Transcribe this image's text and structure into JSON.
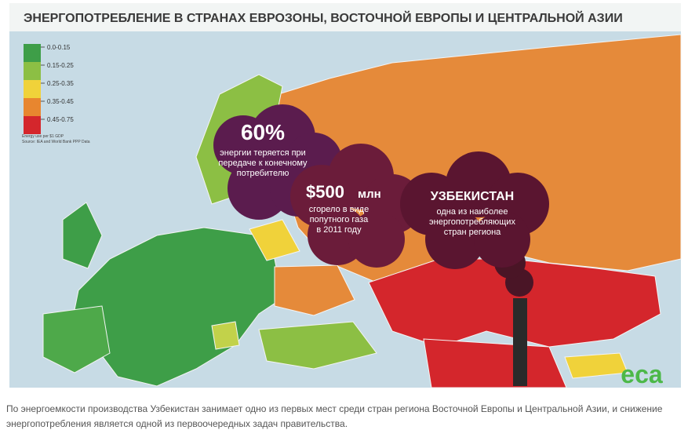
{
  "header": {
    "title": "ЭНЕРГОПОТРЕБЛЕНИЕ В СТРАНАХ ЕВРОЗОНЫ, ВОСТОЧНОЙ ЕВРОПЫ И ЦЕНТРАЛЬНОЙ АЗИИ"
  },
  "legend": {
    "items": [
      {
        "label": "0.0-0.15",
        "color": "#3e9e48"
      },
      {
        "label": "0.15-0.25",
        "color": "#8cbf44"
      },
      {
        "label": "0.25-0.35",
        "color": "#f0d23a"
      },
      {
        "label": "0.35-0.45",
        "color": "#e8862f"
      },
      {
        "label": "0.45-0.75",
        "color": "#d4262c"
      }
    ],
    "note": "Energy use per $1 GDP",
    "source": "Source: IEA and World Bank PPP Data"
  },
  "callouts": [
    {
      "headline": "60%",
      "lines": [
        "энергии теряется при",
        "передаче к конечному",
        "потребителю"
      ]
    },
    {
      "headline": "$500",
      "unit": "млн",
      "lines": [
        "сгорело в виде",
        "попутного газа",
        "в 2011 году"
      ]
    },
    {
      "headline": "УЗБЕКИСТАН",
      "lines": [
        "одна из наиболее",
        "энергопотребляющих",
        "стран региона"
      ]
    }
  ],
  "logo": "eca",
  "caption": "По энергоемкости производства Узбекистан занимает одно из первых мест среди стран региона Восточной Европы и Центральной Азии, и снижение энергопотребления является  одной из первоочередных задач правительства."
}
